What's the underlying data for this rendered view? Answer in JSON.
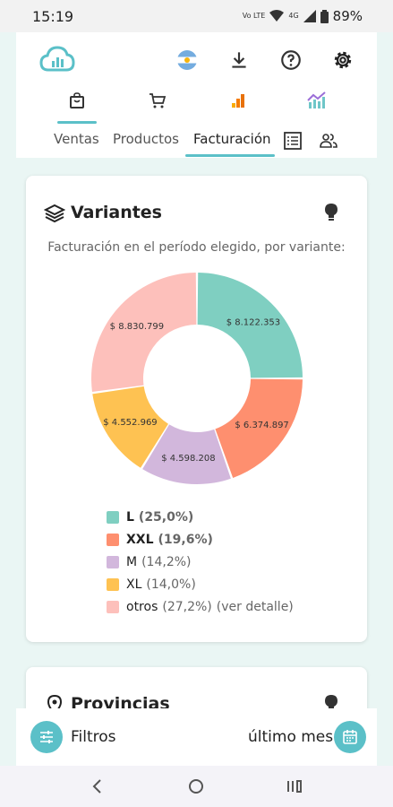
{
  "status": {
    "time": "15:19",
    "lte": "Vo LTE",
    "network": "4G",
    "battery": "89%"
  },
  "header": {
    "icons": [
      "cloud-chart-logo",
      "argentina-flag-icon",
      "download-icon",
      "help-icon",
      "gear-icon"
    ]
  },
  "main_tabs": {
    "icons": [
      "shopping-bag-icon",
      "cart-icon",
      "bar-chart-icon",
      "trend-chart-icon"
    ],
    "active": 0
  },
  "sub_tabs": {
    "items": [
      "Ventas",
      "Productos",
      "Facturación"
    ],
    "active": "Facturación",
    "icons": [
      "list-icon",
      "users-icon"
    ]
  },
  "card": {
    "title": "Variantes",
    "subtitle": "Facturación en el período elegido, por variante:"
  },
  "chart_data": {
    "type": "pie",
    "donut": true,
    "categories": [
      "L",
      "XXL",
      "M",
      "XL",
      "otros"
    ],
    "values": [
      8122353,
      6374897,
      4598208,
      4552969,
      8830799
    ],
    "value_labels": [
      "$ 8.122.353",
      "$ 6.374.897",
      "$ 4.598.208",
      "$ 4.552.969",
      "$ 8.830.799"
    ],
    "percent_labels": [
      "(25,0%)",
      "(19,6%)",
      "(14,2%)",
      "(14,0%)",
      "(27,2%)"
    ],
    "colors": [
      "#7fcfc1",
      "#fe8f6f",
      "#d2b7dc",
      "#fec252",
      "#fdc0bb"
    ],
    "legend_extra": "(ver detalle)",
    "legend_placement": "bottom"
  },
  "card2": {
    "title": "Provincias"
  },
  "bottom": {
    "filters_label": "Filtros",
    "period_label": "último mes"
  }
}
